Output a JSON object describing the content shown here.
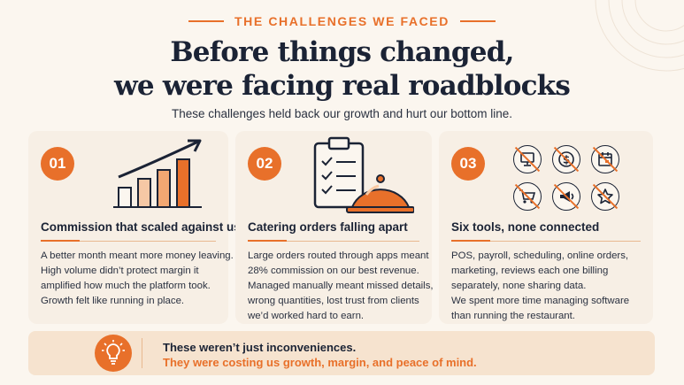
{
  "eyebrow": "THE CHALLENGES WE FACED",
  "headline": {
    "line1": "Before things changed,",
    "line2": "we were facing real roadblocks"
  },
  "subtitle": "These challenges held back our growth and hurt our bottom line.",
  "cards": [
    {
      "number": "01",
      "icon": "growth-bar-chart-icon",
      "title": "Commission that scaled against us",
      "body": [
        "A better month meant more money leaving.",
        "High volume didn’t protect margin it",
        "amplified how much the platform took.",
        "Growth felt like running in place."
      ]
    },
    {
      "number": "02",
      "icon": "clipboard-cloche-icon",
      "title": "Catering orders falling apart",
      "body": [
        "Large orders routed through apps meant",
        "28% commission on our best revenue.",
        "Managed manually meant missed details,",
        "wrong quantities, lost trust from clients",
        "we’d worked hard to earn."
      ]
    },
    {
      "number": "03",
      "icon": "disconnected-tools-icon",
      "title": "Six tools, none connected",
      "tools": [
        "pos-monitor-icon",
        "payroll-dollar-icon",
        "calendar-icon",
        "cart-icon",
        "megaphone-icon",
        "star-icon"
      ],
      "body": [
        "POS, payroll, scheduling, online orders,",
        "marketing, reviews each one billing",
        "separately, none sharing data.",
        "We spent more time managing software",
        "than running the restaurant."
      ]
    }
  ],
  "callout": {
    "icon": "lightbulb-icon",
    "line1": "These weren’t just inconveniences.",
    "line2": "They were costing us growth, margin, and peace of mind."
  },
  "colors": {
    "accent": "#e8702a",
    "navy": "#1b2335",
    "background": "#fbf6ef",
    "card": "#f7efe5"
  }
}
